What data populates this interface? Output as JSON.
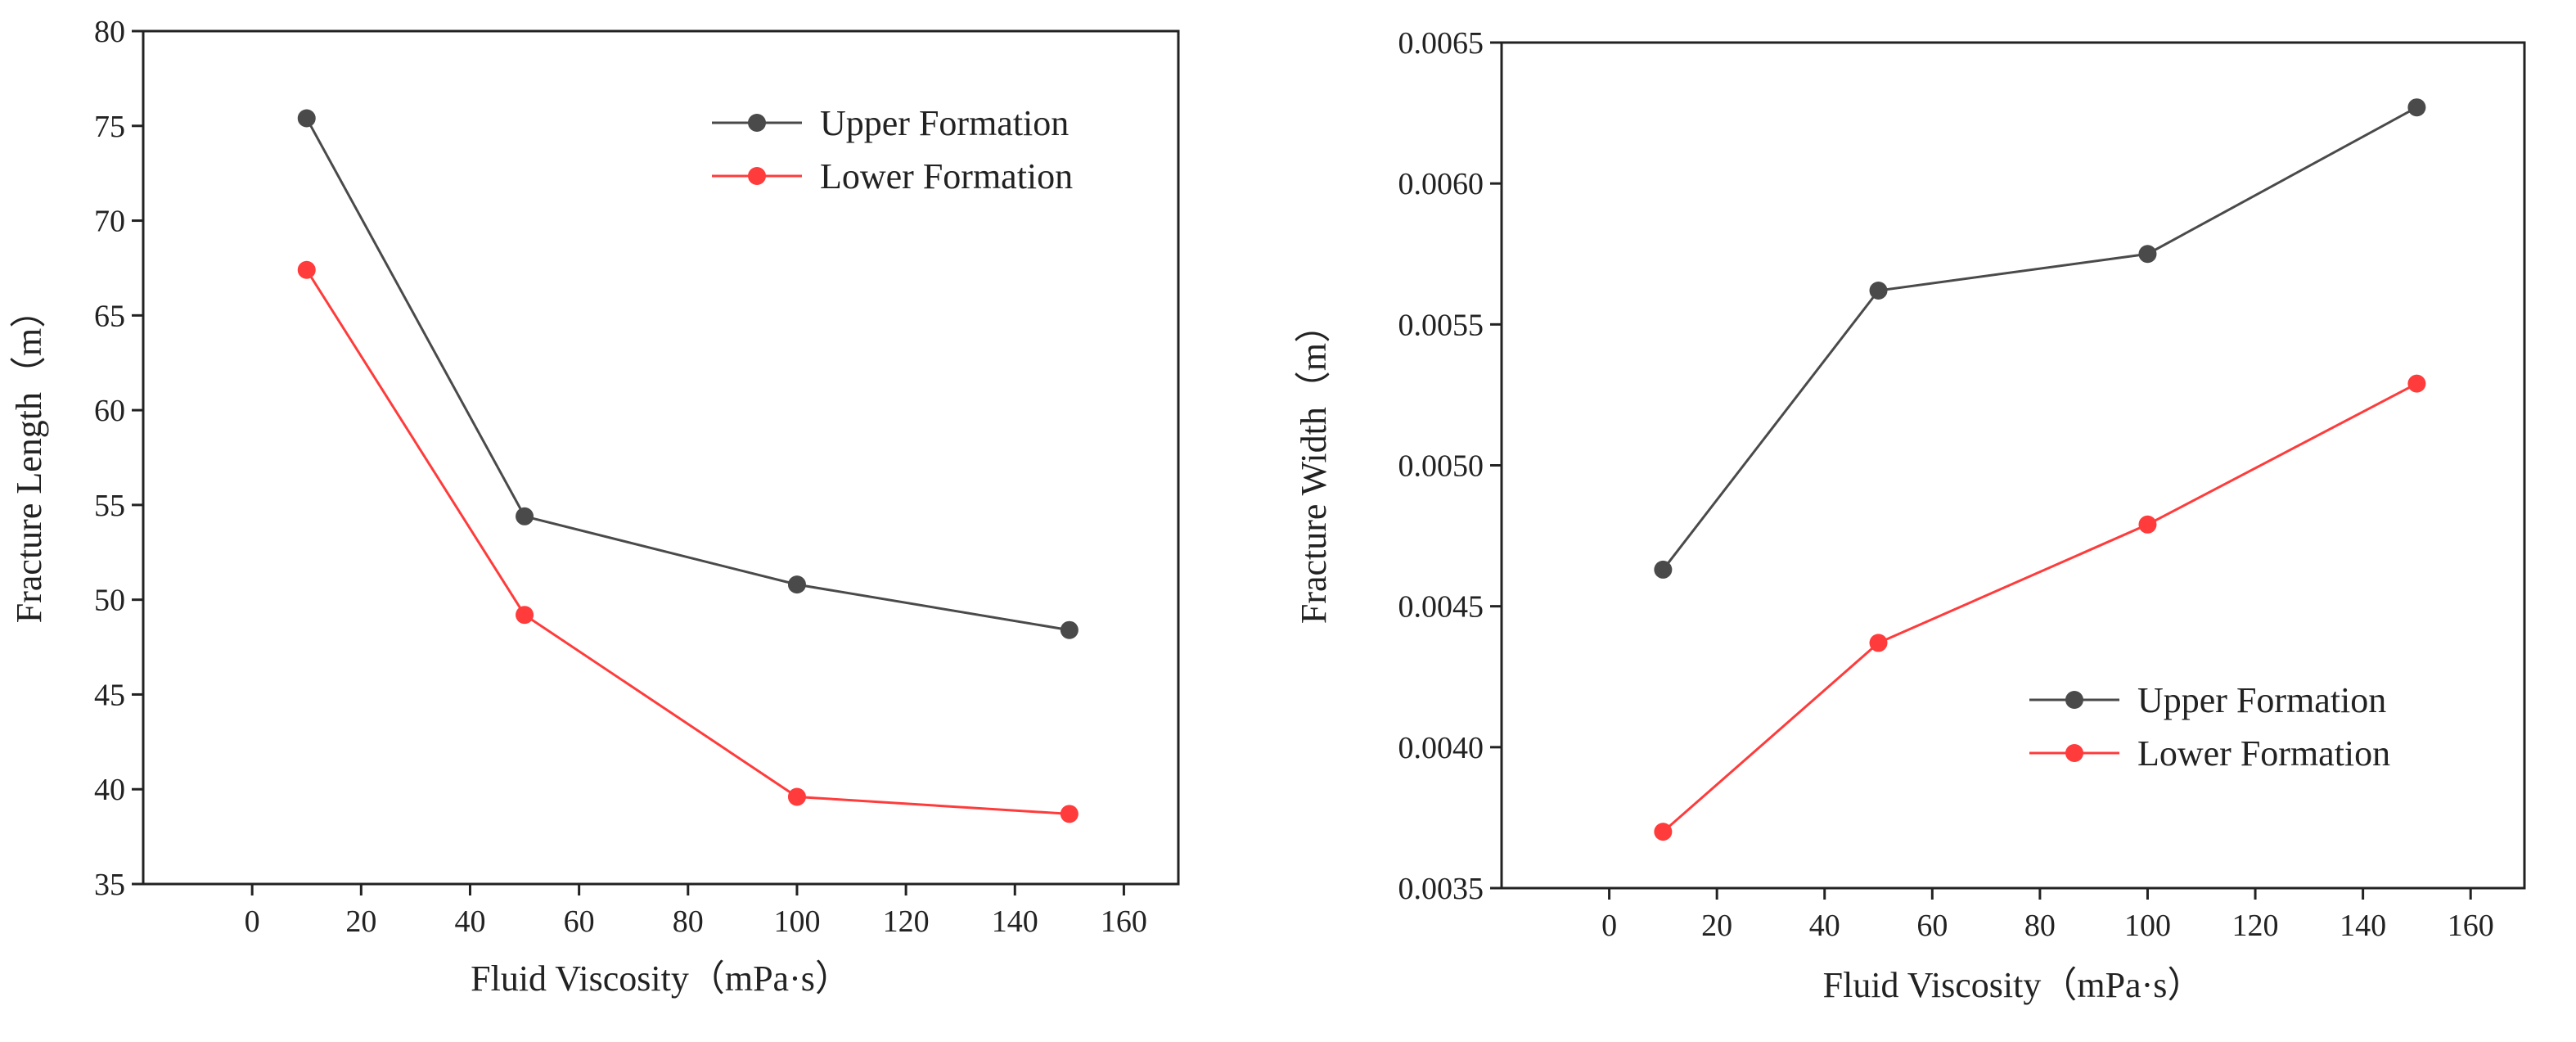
{
  "chart_data": [
    {
      "type": "line",
      "title": "",
      "xlabel": "Fluid Viscosity（mPa·s）",
      "ylabel": "Fracture Length（m）",
      "xlim": [
        -20,
        170
      ],
      "ylim": [
        35,
        80
      ],
      "xticks": [
        0,
        20,
        40,
        60,
        80,
        100,
        120,
        140,
        160
      ],
      "yticks": [
        35,
        40,
        45,
        50,
        55,
        60,
        65,
        70,
        75,
        80
      ],
      "x": [
        10,
        50,
        100,
        150
      ],
      "legend_position": "top-right",
      "series": [
        {
          "name": "Upper Formation",
          "color": "#4a4a4a",
          "values": [
            75.4,
            54.4,
            50.8,
            48.4
          ]
        },
        {
          "name": "Lower Formation",
          "color": "#ff3b3b",
          "values": [
            67.4,
            49.2,
            39.6,
            38.7
          ]
        }
      ]
    },
    {
      "type": "line",
      "title": "",
      "xlabel": "Fluid Viscosity（mPa·s）",
      "ylabel": "Fracture Width（m）",
      "xlim": [
        -20,
        170
      ],
      "ylim": [
        0.0035,
        0.0065
      ],
      "xticks": [
        0,
        20,
        40,
        60,
        80,
        100,
        120,
        140,
        160
      ],
      "yticks": [
        0.0035,
        0.004,
        0.0045,
        0.005,
        0.0055,
        0.006,
        0.0065
      ],
      "ytick_decimals": 4,
      "x": [
        10,
        50,
        100,
        150
      ],
      "legend_position": "bottom-right",
      "series": [
        {
          "name": "Upper Formation",
          "color": "#4a4a4a",
          "values": [
            0.00463,
            0.00562,
            0.00575,
            0.00627
          ]
        },
        {
          "name": "Lower Formation",
          "color": "#ff3b3b",
          "values": [
            0.0037,
            0.00437,
            0.00479,
            0.00529
          ]
        }
      ]
    }
  ]
}
